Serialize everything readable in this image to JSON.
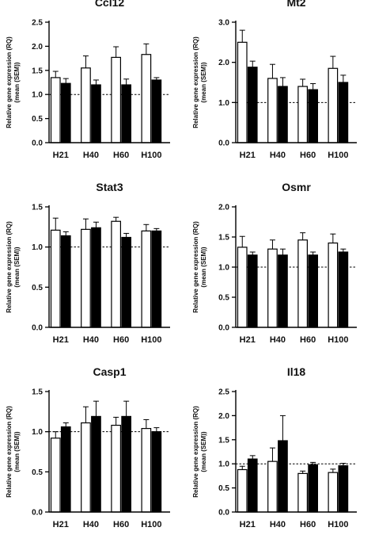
{
  "chart_data": [
    {
      "type": "bar",
      "title": "Ccl12",
      "ylabel_line1": "Relative gene expression (RQ)",
      "ylabel_line2": "(mean (SEM))",
      "categories": [
        "H21",
        "H40",
        "H60",
        "H100"
      ],
      "ylim": [
        0,
        2.5
      ],
      "yticks": [
        "0.0",
        "0.5",
        "1.0",
        "1.5",
        "2.0",
        "2.5"
      ],
      "reference_line": 1.0,
      "series": [
        {
          "fill": "#ffffff",
          "values": [
            1.35,
            1.55,
            1.77,
            1.83
          ],
          "sem": [
            0.13,
            0.25,
            0.22,
            0.22
          ]
        },
        {
          "fill": "#000000",
          "values": [
            1.23,
            1.2,
            1.2,
            1.3
          ],
          "sem": [
            0.1,
            0.1,
            0.12,
            0.05
          ]
        }
      ]
    },
    {
      "type": "bar",
      "title": "Mt2",
      "ylabel_line1": "Relative gene expression (RQ)",
      "ylabel_line2": "(mean (SEM))",
      "categories": [
        "H21",
        "H40",
        "H60",
        "H100"
      ],
      "ylim": [
        0,
        3.0
      ],
      "yticks": [
        "0.0",
        "1.0",
        "2.0",
        "3.0"
      ],
      "reference_line": 1.0,
      "series": [
        {
          "fill": "#ffffff",
          "values": [
            2.5,
            1.6,
            1.4,
            1.85
          ],
          "sem": [
            0.3,
            0.35,
            0.18,
            0.3
          ]
        },
        {
          "fill": "#000000",
          "values": [
            1.88,
            1.4,
            1.32,
            1.5
          ],
          "sem": [
            0.15,
            0.22,
            0.15,
            0.18
          ]
        }
      ]
    },
    {
      "type": "bar",
      "title": "Stat3",
      "ylabel_line1": "Relative gene expression (RQ)",
      "ylabel_line2": "(mean (SEM))",
      "categories": [
        "H21",
        "H40",
        "H60",
        "H100"
      ],
      "ylim": [
        0,
        1.5
      ],
      "yticks": [
        "0.0",
        "0.5",
        "1.0",
        "1.5"
      ],
      "reference_line": 1.0,
      "series": [
        {
          "fill": "#ffffff",
          "values": [
            1.21,
            1.22,
            1.32,
            1.2
          ],
          "sem": [
            0.15,
            0.13,
            0.05,
            0.08
          ]
        },
        {
          "fill": "#000000",
          "values": [
            1.14,
            1.24,
            1.12,
            1.2
          ],
          "sem": [
            0.05,
            0.07,
            0.05,
            0.03
          ]
        }
      ]
    },
    {
      "type": "bar",
      "title": "Osmr",
      "ylabel_line1": "Relative gene expression (RQ)",
      "ylabel_line2": "(mean (SEM))",
      "categories": [
        "H21",
        "H40",
        "H60",
        "H100"
      ],
      "ylim": [
        0,
        2.0
      ],
      "yticks": [
        "0.0",
        "0.5",
        "1.0",
        "1.5",
        "2.0"
      ],
      "reference_line": 1.0,
      "series": [
        {
          "fill": "#ffffff",
          "values": [
            1.33,
            1.3,
            1.45,
            1.4
          ],
          "sem": [
            0.18,
            0.15,
            0.12,
            0.15
          ]
        },
        {
          "fill": "#000000",
          "values": [
            1.2,
            1.2,
            1.2,
            1.25
          ],
          "sem": [
            0.05,
            0.1,
            0.05,
            0.05
          ]
        }
      ]
    },
    {
      "type": "bar",
      "title": "Casp1",
      "ylabel_line1": "Relative gene expression (RQ)",
      "ylabel_line2": "(mean (SEM))",
      "categories": [
        "H21",
        "H40",
        "H60",
        "H100"
      ],
      "ylim": [
        0,
        1.5
      ],
      "yticks": [
        "0.0",
        "0.5",
        "1.0",
        "1.5"
      ],
      "reference_line": 1.0,
      "series": [
        {
          "fill": "#ffffff",
          "values": [
            0.92,
            1.11,
            1.08,
            1.04
          ],
          "sem": [
            0.08,
            0.2,
            0.1,
            0.11
          ]
        },
        {
          "fill": "#000000",
          "values": [
            1.06,
            1.19,
            1.19,
            1.0
          ],
          "sem": [
            0.05,
            0.19,
            0.19,
            0.05
          ]
        }
      ]
    },
    {
      "type": "bar",
      "title": "Il18",
      "ylabel_line1": "Relative gene expression (RQ)",
      "ylabel_line2": "(mean (SEM))",
      "categories": [
        "H21",
        "H40",
        "H60",
        "H100"
      ],
      "ylim": [
        0,
        2.5
      ],
      "yticks": [
        "0.0",
        "0.5",
        "1.0",
        "1.5",
        "2.0",
        "2.5"
      ],
      "reference_line": 1.0,
      "series": [
        {
          "fill": "#ffffff",
          "values": [
            0.88,
            1.05,
            0.8,
            0.82
          ],
          "sem": [
            0.07,
            0.28,
            0.05,
            0.07
          ]
        },
        {
          "fill": "#000000",
          "values": [
            1.1,
            1.48,
            0.98,
            0.96
          ],
          "sem": [
            0.07,
            0.52,
            0.05,
            0.05
          ]
        }
      ]
    }
  ]
}
